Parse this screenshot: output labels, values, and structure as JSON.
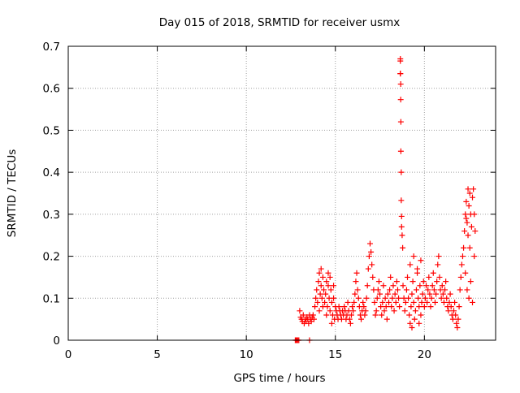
{
  "chart_data": {
    "type": "scatter",
    "title": "Day 015 of 2018, SRMTID for receiver usmx",
    "xlabel": "GPS time / hours",
    "ylabel": "SRMTID / TECUs",
    "xlim": [
      0,
      24
    ],
    "ylim": [
      0,
      0.7
    ],
    "xticks": [
      0,
      5,
      10,
      15,
      20
    ],
    "yticks": [
      0,
      0.1,
      0.2,
      0.3,
      0.4,
      0.5,
      0.6,
      0.7
    ],
    "grid": true,
    "marker": "plus",
    "color": "#ff0000",
    "series": [
      {
        "name": "SRMTID",
        "points": [
          [
            12.75,
            0.0
          ],
          [
            12.8,
            0.0
          ],
          [
            12.85,
            0.0
          ],
          [
            12.9,
            0.0
          ],
          [
            12.95,
            0.0
          ],
          [
            13.55,
            0.0
          ],
          [
            13.0,
            0.07
          ],
          [
            13.05,
            0.055
          ],
          [
            13.1,
            0.05
          ],
          [
            13.15,
            0.045
          ],
          [
            13.2,
            0.06
          ],
          [
            13.25,
            0.04
          ],
          [
            13.3,
            0.05
          ],
          [
            13.35,
            0.045
          ],
          [
            13.4,
            0.055
          ],
          [
            13.45,
            0.05
          ],
          [
            13.5,
            0.04
          ],
          [
            13.55,
            0.06
          ],
          [
            13.6,
            0.05
          ],
          [
            13.65,
            0.045
          ],
          [
            13.7,
            0.055
          ],
          [
            13.75,
            0.06
          ],
          [
            13.8,
            0.05
          ],
          [
            13.85,
            0.08
          ],
          [
            13.9,
            0.1
          ],
          [
            13.95,
            0.12
          ],
          [
            14.0,
            0.09
          ],
          [
            14.05,
            0.14
          ],
          [
            14.1,
            0.16
          ],
          [
            14.15,
            0.11
          ],
          [
            14.2,
            0.13
          ],
          [
            14.25,
            0.1
          ],
          [
            14.3,
            0.15
          ],
          [
            14.35,
            0.12
          ],
          [
            14.4,
            0.09
          ],
          [
            14.45,
            0.11
          ],
          [
            14.5,
            0.14
          ],
          [
            14.55,
            0.08
          ],
          [
            14.6,
            0.13
          ],
          [
            14.65,
            0.1
          ],
          [
            14.7,
            0.07
          ],
          [
            14.75,
            0.12
          ],
          [
            14.8,
            0.09
          ],
          [
            14.85,
            0.06
          ],
          [
            14.9,
            0.1
          ],
          [
            14.95,
            0.05
          ],
          [
            14.1,
            0.07
          ],
          [
            14.3,
            0.08
          ],
          [
            14.5,
            0.06
          ],
          [
            14.7,
            0.15
          ],
          [
            14.9,
            0.13
          ],
          [
            15.0,
            0.08
          ],
          [
            14.2,
            0.17
          ],
          [
            14.6,
            0.16
          ],
          [
            14.8,
            0.04
          ],
          [
            15.05,
            0.07
          ],
          [
            15.1,
            0.06
          ],
          [
            15.15,
            0.05
          ],
          [
            15.2,
            0.08
          ],
          [
            15.25,
            0.07
          ],
          [
            15.3,
            0.06
          ],
          [
            15.35,
            0.05
          ],
          [
            15.4,
            0.07
          ],
          [
            15.45,
            0.06
          ],
          [
            15.5,
            0.08
          ],
          [
            15.55,
            0.07
          ],
          [
            15.6,
            0.05
          ],
          [
            15.65,
            0.06
          ],
          [
            15.7,
            0.09
          ],
          [
            15.75,
            0.07
          ],
          [
            15.8,
            0.05
          ],
          [
            15.85,
            0.04
          ],
          [
            15.9,
            0.06
          ],
          [
            15.95,
            0.08
          ],
          [
            16.0,
            0.07
          ],
          [
            16.05,
            0.09
          ],
          [
            16.1,
            0.11
          ],
          [
            16.15,
            0.14
          ],
          [
            16.2,
            0.16
          ],
          [
            16.25,
            0.12
          ],
          [
            16.3,
            0.1
          ],
          [
            16.35,
            0.08
          ],
          [
            16.4,
            0.06
          ],
          [
            16.45,
            0.05
          ],
          [
            16.5,
            0.07
          ],
          [
            16.55,
            0.09
          ],
          [
            16.6,
            0.08
          ],
          [
            16.65,
            0.06
          ],
          [
            16.7,
            0.07
          ],
          [
            16.75,
            0.1
          ],
          [
            16.8,
            0.13
          ],
          [
            16.85,
            0.17
          ],
          [
            16.9,
            0.2
          ],
          [
            16.95,
            0.23
          ],
          [
            17.0,
            0.21
          ],
          [
            17.05,
            0.18
          ],
          [
            17.1,
            0.15
          ],
          [
            17.15,
            0.12
          ],
          [
            17.2,
            0.09
          ],
          [
            17.25,
            0.06
          ],
          [
            17.3,
            0.07
          ],
          [
            17.35,
            0.1
          ],
          [
            17.4,
            0.12
          ],
          [
            17.45,
            0.14
          ],
          [
            17.5,
            0.11
          ],
          [
            17.55,
            0.08
          ],
          [
            17.6,
            0.06
          ],
          [
            17.65,
            0.09
          ],
          [
            17.7,
            0.13
          ],
          [
            17.75,
            0.07
          ],
          [
            17.8,
            0.1
          ],
          [
            17.85,
            0.08
          ],
          [
            17.9,
            0.05
          ],
          [
            17.95,
            0.11
          ],
          [
            18.0,
            0.09
          ],
          [
            18.05,
            0.12
          ],
          [
            18.1,
            0.15
          ],
          [
            18.15,
            0.08
          ],
          [
            18.2,
            0.1
          ],
          [
            18.25,
            0.13
          ],
          [
            18.3,
            0.07
          ],
          [
            18.35,
            0.11
          ],
          [
            18.4,
            0.09
          ],
          [
            18.45,
            0.14
          ],
          [
            18.5,
            0.12
          ],
          [
            18.55,
            0.1
          ],
          [
            18.6,
            0.08
          ],
          [
            18.65,
            0.67
          ],
          [
            18.65,
            0.665
          ],
          [
            18.65,
            0.635
          ],
          [
            18.65,
            0.635
          ],
          [
            18.67,
            0.61
          ],
          [
            18.67,
            0.573
          ],
          [
            18.68,
            0.52
          ],
          [
            18.68,
            0.45
          ],
          [
            18.7,
            0.4
          ],
          [
            18.7,
            0.333
          ],
          [
            18.72,
            0.295
          ],
          [
            18.72,
            0.27
          ],
          [
            18.75,
            0.25
          ],
          [
            18.78,
            0.22
          ],
          [
            18.8,
            0.13
          ],
          [
            18.85,
            0.1
          ],
          [
            18.9,
            0.07
          ],
          [
            18.95,
            0.09
          ],
          [
            19.0,
            0.12
          ],
          [
            19.05,
            0.15
          ],
          [
            19.1,
            0.1
          ],
          [
            19.15,
            0.06
          ],
          [
            19.2,
            0.04
          ],
          [
            19.25,
            0.08
          ],
          [
            19.3,
            0.11
          ],
          [
            19.35,
            0.14
          ],
          [
            19.4,
            0.09
          ],
          [
            19.45,
            0.05
          ],
          [
            19.5,
            0.07
          ],
          [
            19.55,
            0.12
          ],
          [
            19.6,
            0.16
          ],
          [
            19.65,
            0.1
          ],
          [
            19.7,
            0.08
          ],
          [
            19.75,
            0.13
          ],
          [
            19.8,
            0.06
          ],
          [
            19.85,
            0.09
          ],
          [
            19.9,
            0.11
          ],
          [
            19.95,
            0.14
          ],
          [
            20.0,
            0.08
          ],
          [
            19.2,
            0.18
          ],
          [
            19.4,
            0.2
          ],
          [
            19.6,
            0.17
          ],
          [
            19.8,
            0.19
          ],
          [
            19.3,
            0.03
          ],
          [
            19.7,
            0.04
          ],
          [
            20.05,
            0.1
          ],
          [
            20.1,
            0.13
          ],
          [
            20.15,
            0.09
          ],
          [
            20.2,
            0.12
          ],
          [
            20.25,
            0.15
          ],
          [
            20.3,
            0.11
          ],
          [
            20.35,
            0.08
          ],
          [
            20.4,
            0.1
          ],
          [
            20.45,
            0.13
          ],
          [
            20.5,
            0.16
          ],
          [
            20.55,
            0.12
          ],
          [
            20.6,
            0.09
          ],
          [
            20.65,
            0.11
          ],
          [
            20.7,
            0.14
          ],
          [
            20.75,
            0.18
          ],
          [
            20.8,
            0.2
          ],
          [
            20.85,
            0.15
          ],
          [
            20.9,
            0.12
          ],
          [
            20.95,
            0.1
          ],
          [
            21.0,
            0.13
          ],
          [
            21.05,
            0.11
          ],
          [
            21.1,
            0.09
          ],
          [
            21.15,
            0.12
          ],
          [
            21.2,
            0.14
          ],
          [
            21.25,
            0.1
          ],
          [
            21.3,
            0.08
          ],
          [
            21.35,
            0.07
          ],
          [
            21.4,
            0.09
          ],
          [
            21.45,
            0.11
          ],
          [
            21.5,
            0.08
          ],
          [
            21.55,
            0.06
          ],
          [
            21.6,
            0.05
          ],
          [
            21.65,
            0.07
          ],
          [
            21.7,
            0.09
          ],
          [
            21.75,
            0.06
          ],
          [
            21.8,
            0.04
          ],
          [
            21.85,
            0.03
          ],
          [
            21.9,
            0.05
          ],
          [
            21.95,
            0.08
          ],
          [
            22.0,
            0.12
          ],
          [
            22.05,
            0.15
          ],
          [
            22.1,
            0.18
          ],
          [
            22.15,
            0.2
          ],
          [
            22.2,
            0.22
          ],
          [
            22.25,
            0.26
          ],
          [
            22.3,
            0.3
          ],
          [
            22.35,
            0.33
          ],
          [
            22.4,
            0.28
          ],
          [
            22.45,
            0.25
          ],
          [
            22.5,
            0.32
          ],
          [
            22.55,
            0.35
          ],
          [
            22.6,
            0.3
          ],
          [
            22.65,
            0.27
          ],
          [
            22.7,
            0.34
          ],
          [
            22.75,
            0.36
          ],
          [
            22.8,
            0.3
          ],
          [
            22.85,
            0.26
          ],
          [
            22.3,
            0.16
          ],
          [
            22.4,
            0.12
          ],
          [
            22.5,
            0.1
          ],
          [
            22.6,
            0.14
          ],
          [
            22.7,
            0.09
          ],
          [
            22.8,
            0.2
          ],
          [
            22.35,
            0.29
          ],
          [
            22.45,
            0.36
          ],
          [
            22.55,
            0.22
          ]
        ]
      }
    ]
  }
}
